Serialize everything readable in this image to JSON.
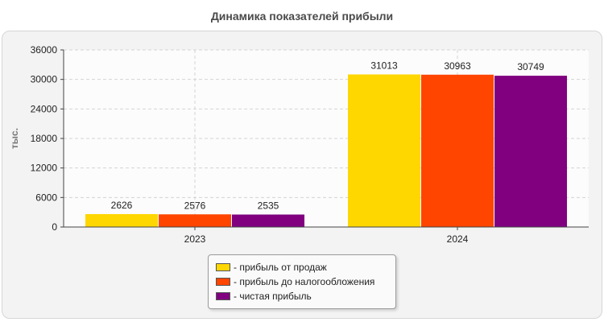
{
  "chart_data": {
    "type": "bar",
    "title": "Динамика показателей прибыли",
    "ylabel": "тыс.",
    "xlabel": "",
    "categories": [
      "2023",
      "2024"
    ],
    "ylim": [
      0,
      36000
    ],
    "yticks": [
      0,
      6000,
      12000,
      18000,
      24000,
      30000,
      36000
    ],
    "grid": true,
    "legend_position": "bottom",
    "series": [
      {
        "name": "- прибыль от продаж",
        "color": "#ffd700",
        "values": [
          2626,
          31013
        ]
      },
      {
        "name": "- прибыль до налогообложения",
        "color": "#ff4500",
        "values": [
          2576,
          30963
        ]
      },
      {
        "name": "- чистая прибыль",
        "color": "#800080",
        "values": [
          2535,
          30749
        ]
      }
    ]
  }
}
